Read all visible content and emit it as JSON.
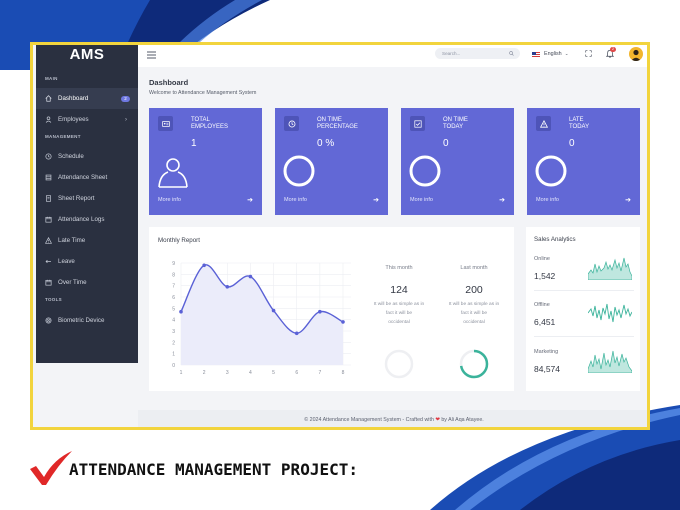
{
  "app": {
    "logo": "AMS"
  },
  "sidebar": {
    "sections": [
      "MAIN",
      "MANAGEMENT",
      "TOOLS"
    ],
    "items": [
      {
        "label": "Dashboard",
        "icon": "home-icon",
        "badge": "2",
        "active": true
      },
      {
        "label": "Employees",
        "icon": "user-icon",
        "chevron": "›"
      },
      {
        "label": "Schedule",
        "icon": "clock-icon"
      },
      {
        "label": "Attendance Sheet",
        "icon": "sheet-icon"
      },
      {
        "label": "Sheet Report",
        "icon": "report-icon"
      },
      {
        "label": "Attendance Logs",
        "icon": "calendar-icon"
      },
      {
        "label": "Late Time",
        "icon": "warning-icon"
      },
      {
        "label": "Leave",
        "icon": "exit-icon"
      },
      {
        "label": "Over Time",
        "icon": "calendar-icon"
      },
      {
        "label": "Biometric Device",
        "icon": "fingerprint-icon"
      }
    ]
  },
  "topbar": {
    "search_placeholder": "Search...",
    "language": "English",
    "notifications_count": "2"
  },
  "page": {
    "title": "Dashboard",
    "subtitle": "Welcome to Attendance Management System"
  },
  "cards": [
    {
      "label_line1": "TOTAL",
      "label_line2": "EMPLOYEES",
      "value": "1",
      "more": "More info",
      "icon": "id-card-icon"
    },
    {
      "label_line1": "ON TIME",
      "label_line2": "PERCENTAGE",
      "value": "0 %",
      "more": "More info",
      "icon": "clock-icon"
    },
    {
      "label_line1": "ON TIME",
      "label_line2": "TODAY",
      "value": "0",
      "more": "More info",
      "icon": "checkbox-icon"
    },
    {
      "label_line1": "LATE",
      "label_line2": "TODAY",
      "value": "0",
      "more": "More info",
      "icon": "warning-icon"
    }
  ],
  "monthly_report": {
    "title": "Monthly Report",
    "this_month": {
      "label": "This month",
      "value": "124",
      "note_lines": [
        "It will be as simple as in",
        "fact it will be",
        "occidental"
      ]
    },
    "last_month": {
      "label": "Last month",
      "value": "200",
      "note_lines": [
        "It will be as simple as in",
        "fact it will be",
        "occidental"
      ]
    },
    "last_month_progress": 0.72,
    "this_month_progress": 0.0
  },
  "chart_data": {
    "type": "line",
    "title": "",
    "x": [
      1,
      2,
      3,
      4,
      5,
      6,
      7,
      8
    ],
    "values": [
      4.7,
      8.8,
      6.9,
      7.8,
      4.8,
      2.8,
      4.7,
      3.8
    ],
    "xlim": [
      1,
      8
    ],
    "ylim": [
      0,
      9
    ],
    "yticks": [
      0,
      1,
      2,
      3,
      4,
      5,
      6,
      7,
      8,
      9
    ],
    "grid": true,
    "color": "#5a61d6",
    "fill": "#ebecfa"
  },
  "sales_analytics": {
    "title": "Sales Analytics",
    "rows": [
      {
        "name": "Online",
        "value": "1,542"
      },
      {
        "name": "Offline",
        "value": "6,451"
      },
      {
        "name": "Marketing",
        "value": "84,574"
      }
    ]
  },
  "footer": {
    "text_before": "© 2024 Attendance Management System - Crafted with",
    "heart": "❤",
    "text_after": "by Ali Aqa Atayee."
  },
  "caption": {
    "text": "ATTENDANCE MANAGEMENT PROJECT:"
  },
  "colors": {
    "accent": "#6268d6",
    "sidebar": "#2a3040",
    "frame": "#f2d43d",
    "teal": "#3bb39b",
    "brand_blue": "#1d4fb8"
  }
}
